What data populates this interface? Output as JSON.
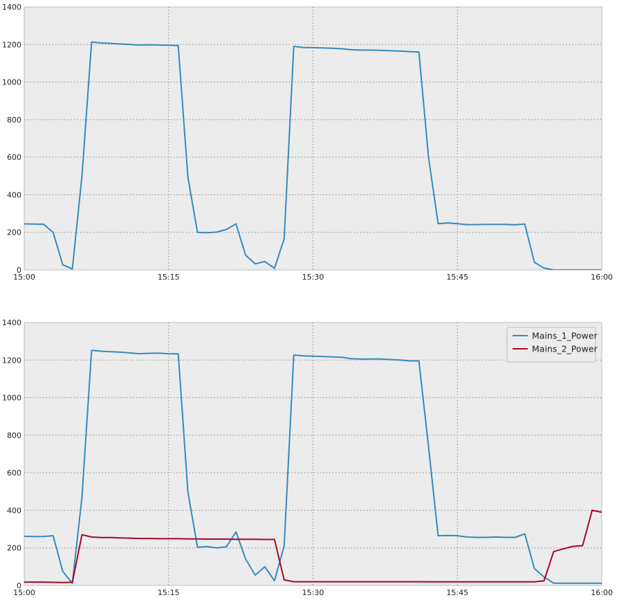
{
  "colors": {
    "mains_1": "#348abd",
    "mains_2": "#a60628"
  },
  "chart_data": [
    {
      "type": "line",
      "x_ticks": [
        "15:00",
        "15:15",
        "15:30",
        "15:45",
        "16:00"
      ],
      "x_range_minutes": [
        0,
        60
      ],
      "ylim": [
        0,
        1400
      ],
      "y_ticks": [
        "0",
        "200",
        "400",
        "600",
        "800",
        "1000",
        "1200",
        "1400"
      ],
      "grid": true,
      "legend": false,
      "series": [
        {
          "color_key": "mains_1",
          "points": [
            [
              0,
              245
            ],
            [
              1,
              244
            ],
            [
              2,
              243
            ],
            [
              3,
              200
            ],
            [
              4,
              27
            ],
            [
              5,
              5
            ],
            [
              6,
              500
            ],
            [
              7,
              1213
            ],
            [
              8,
              1208
            ],
            [
              9,
              1206
            ],
            [
              10,
              1203
            ],
            [
              11,
              1200
            ],
            [
              12,
              1197
            ],
            [
              13,
              1198
            ],
            [
              14,
              1197
            ],
            [
              15,
              1196
            ],
            [
              16,
              1194
            ],
            [
              17,
              495
            ],
            [
              18,
              200
            ],
            [
              19,
              198
            ],
            [
              20,
              201
            ],
            [
              21,
              215
            ],
            [
              22,
              245
            ],
            [
              23,
              78
            ],
            [
              24,
              32
            ],
            [
              25,
              45
            ],
            [
              26,
              8
            ],
            [
              27,
              165
            ],
            [
              28,
              1190
            ],
            [
              29,
              1184
            ],
            [
              30,
              1183
            ],
            [
              31,
              1182
            ],
            [
              32,
              1180
            ],
            [
              33,
              1177
            ],
            [
              34,
              1172
            ],
            [
              35,
              1170
            ],
            [
              36,
              1170
            ],
            [
              37,
              1169
            ],
            [
              38,
              1167
            ],
            [
              39,
              1165
            ],
            [
              40,
              1162
            ],
            [
              41,
              1160
            ],
            [
              42,
              600
            ],
            [
              43,
              246
            ],
            [
              44,
              250
            ],
            [
              45,
              246
            ],
            [
              46,
              241
            ],
            [
              47,
              241
            ],
            [
              48,
              242
            ],
            [
              49,
              242
            ],
            [
              50,
              242
            ],
            [
              51,
              240
            ],
            [
              52,
              244
            ],
            [
              53,
              40
            ],
            [
              54,
              10
            ],
            [
              55,
              0
            ],
            [
              56,
              0
            ],
            [
              57,
              0
            ],
            [
              58,
              0
            ],
            [
              59,
              0
            ],
            [
              60,
              0
            ]
          ]
        }
      ]
    },
    {
      "type": "line",
      "x_ticks": [
        "15:00",
        "15:15",
        "15:30",
        "15:45",
        "16:00"
      ],
      "x_range_minutes": [
        0,
        60
      ],
      "ylim": [
        0,
        1400
      ],
      "y_ticks": [
        "0",
        "200",
        "400",
        "600",
        "800",
        "1000",
        "1200",
        "1400"
      ],
      "grid": true,
      "legend": "top-right",
      "series": [
        {
          "name": "Mains_1_Power",
          "color_key": "mains_1",
          "points": [
            [
              0,
              262
            ],
            [
              1,
              260
            ],
            [
              2,
              261
            ],
            [
              3,
              265
            ],
            [
              4,
              75
            ],
            [
              5,
              12
            ],
            [
              6,
              470
            ],
            [
              7,
              1252
            ],
            [
              8,
              1247
            ],
            [
              9,
              1244
            ],
            [
              10,
              1242
            ],
            [
              11,
              1238
            ],
            [
              12,
              1234
            ],
            [
              13,
              1236
            ],
            [
              14,
              1237
            ],
            [
              15,
              1233
            ],
            [
              16,
              1233
            ],
            [
              17,
              500
            ],
            [
              18,
              203
            ],
            [
              19,
              207
            ],
            [
              20,
              200
            ],
            [
              21,
              206
            ],
            [
              22,
              285
            ],
            [
              23,
              140
            ],
            [
              24,
              55
            ],
            [
              25,
              100
            ],
            [
              26,
              25
            ],
            [
              27,
              210
            ],
            [
              28,
              1227
            ],
            [
              29,
              1222
            ],
            [
              30,
              1221
            ],
            [
              31,
              1219
            ],
            [
              32,
              1217
            ],
            [
              33,
              1215
            ],
            [
              34,
              1207
            ],
            [
              35,
              1205
            ],
            [
              36,
              1206
            ],
            [
              37,
              1206
            ],
            [
              38,
              1203
            ],
            [
              39,
              1200
            ],
            [
              40,
              1196
            ],
            [
              41,
              1195
            ],
            [
              42,
              740
            ],
            [
              43,
              265
            ],
            [
              44,
              266
            ],
            [
              45,
              265
            ],
            [
              46,
              258
            ],
            [
              47,
              256
            ],
            [
              48,
              256
            ],
            [
              49,
              258
            ],
            [
              50,
              256
            ],
            [
              51,
              256
            ],
            [
              52,
              275
            ],
            [
              53,
              90
            ],
            [
              54,
              45
            ],
            [
              55,
              12
            ],
            [
              56,
              12
            ],
            [
              57,
              12
            ],
            [
              58,
              12
            ],
            [
              59,
              12
            ],
            [
              60,
              12
            ]
          ]
        },
        {
          "name": "Mains_2_Power",
          "color_key": "mains_2",
          "points": [
            [
              0,
              18
            ],
            [
              1,
              18
            ],
            [
              2,
              18
            ],
            [
              3,
              17
            ],
            [
              4,
              16
            ],
            [
              5,
              17
            ],
            [
              6,
              270
            ],
            [
              7,
              258
            ],
            [
              8,
              255
            ],
            [
              9,
              255
            ],
            [
              10,
              253
            ],
            [
              11,
              252
            ],
            [
              12,
              250
            ],
            [
              13,
              250
            ],
            [
              14,
              249
            ],
            [
              15,
              249
            ],
            [
              16,
              249
            ],
            [
              17,
              248
            ],
            [
              18,
              248
            ],
            [
              19,
              247
            ],
            [
              20,
              247
            ],
            [
              21,
              247
            ],
            [
              22,
              246
            ],
            [
              23,
              246
            ],
            [
              24,
              246
            ],
            [
              25,
              245
            ],
            [
              26,
              245
            ],
            [
              27,
              30
            ],
            [
              28,
              20
            ],
            [
              29,
              20
            ],
            [
              30,
              20
            ],
            [
              31,
              20
            ],
            [
              32,
              20
            ],
            [
              33,
              20
            ],
            [
              34,
              20
            ],
            [
              35,
              20
            ],
            [
              36,
              20
            ],
            [
              37,
              20
            ],
            [
              38,
              20
            ],
            [
              39,
              20
            ],
            [
              40,
              20
            ],
            [
              41,
              20
            ],
            [
              42,
              19
            ],
            [
              43,
              19
            ],
            [
              44,
              19
            ],
            [
              45,
              19
            ],
            [
              46,
              19
            ],
            [
              47,
              19
            ],
            [
              48,
              19
            ],
            [
              49,
              19
            ],
            [
              50,
              19
            ],
            [
              51,
              19
            ],
            [
              52,
              19
            ],
            [
              53,
              19
            ],
            [
              54,
              25
            ],
            [
              55,
              180
            ],
            [
              56,
              195
            ],
            [
              57,
              208
            ],
            [
              58,
              212
            ],
            [
              59,
              400
            ],
            [
              60,
              390
            ]
          ]
        }
      ]
    }
  ]
}
